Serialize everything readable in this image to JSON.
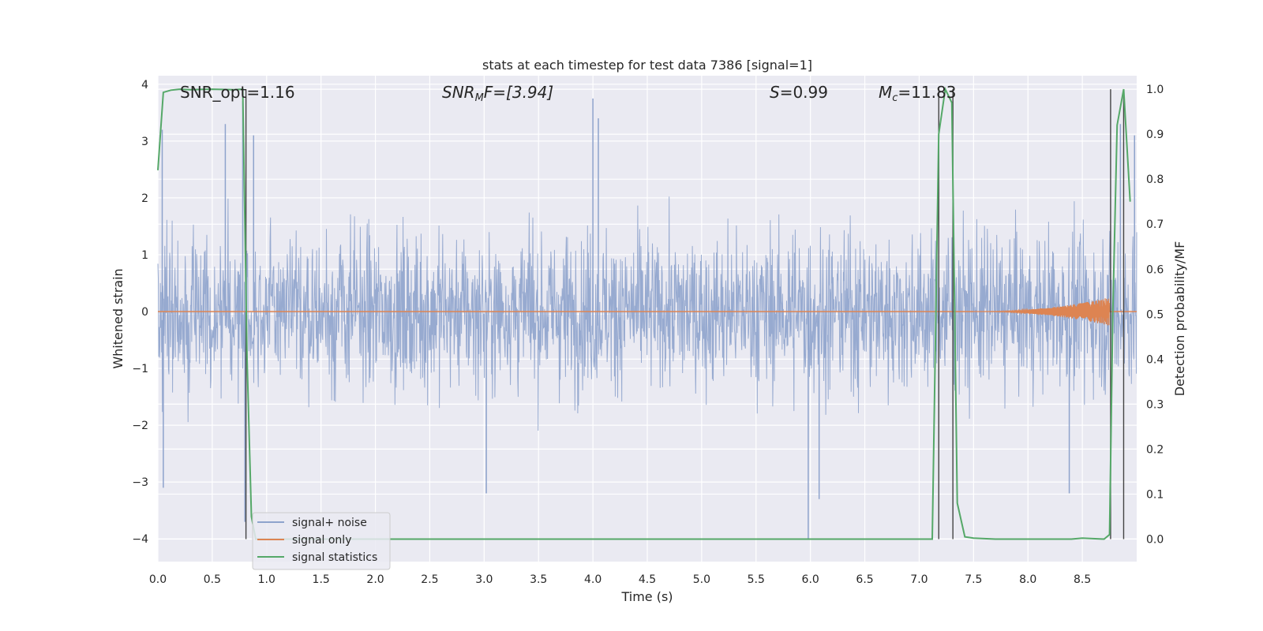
{
  "chart_data": {
    "type": "line",
    "title": "stats at each timestep for test data 7386 [signal=1]",
    "xlabel": "Time (s)",
    "ylabel_left": "Whitened strain",
    "ylabel_right": "Detection probability/MF",
    "xlim": [
      0.0,
      9.0
    ],
    "ylim_left": [
      -4.4,
      4.15
    ],
    "ylim_right": [
      -0.05,
      1.03
    ],
    "x_ticks": [
      "0.0",
      "0.5",
      "1.0",
      "1.5",
      "2.0",
      "2.5",
      "3.0",
      "3.5",
      "4.0",
      "4.5",
      "5.0",
      "5.5",
      "6.0",
      "6.5",
      "7.0",
      "7.5",
      "8.0",
      "8.5"
    ],
    "y_left_ticks": [
      "4",
      "3",
      "2",
      "1",
      "0",
      "−1",
      "−2",
      "−3",
      "−4"
    ],
    "y_right_ticks": [
      "1.0",
      "0.9",
      "0.8",
      "0.7",
      "0.6",
      "0.5",
      "0.4",
      "0.3",
      "0.2",
      "0.1",
      "0.0"
    ],
    "grid": true,
    "legend_position": "lower-left",
    "annotations": {
      "snr_opt": "SNR_opt=1.16",
      "snr_mf_base": "SNR",
      "snr_mf_sub": "M",
      "snr_mf_tail": "F=[3.94]",
      "s_italic": "S",
      "s_value": "=0.99",
      "mc_base": "M",
      "mc_sub": "c",
      "mc_value": "=11.83"
    },
    "series": [
      {
        "name": "signal+ noise",
        "color": "#8ea3cc",
        "description_values": "noise-like strain, amplitude mostly within ±2.5",
        "peak_values": [
          {
            "x": 0.04,
            "y": 3.2
          },
          {
            "x": 0.62,
            "y": 3.3
          },
          {
            "x": 0.78,
            "y": 3.7
          },
          {
            "x": 0.8,
            "y": -3.7
          },
          {
            "x": 0.88,
            "y": 3.1
          },
          {
            "x": 0.05,
            "y": -3.1
          },
          {
            "x": 3.02,
            "y": -3.2
          },
          {
            "x": 4.0,
            "y": 3.75
          },
          {
            "x": 4.05,
            "y": 3.4
          },
          {
            "x": 5.98,
            "y": -4.0
          },
          {
            "x": 6.08,
            "y": -3.3
          },
          {
            "x": 8.38,
            "y": -3.2
          },
          {
            "x": 8.85,
            "y": 3.3
          },
          {
            "x": 8.98,
            "y": 3.1
          }
        ]
      },
      {
        "name": "signal only",
        "color": "#dd8452",
        "chirp_start": 7.5,
        "chirp_end": 8.75,
        "chirp_max_amplitude": 0.25
      },
      {
        "name": "signal statistics",
        "color": "#55a868",
        "x": [
          0.0,
          0.05,
          0.12,
          0.2,
          0.3,
          0.5,
          0.7,
          0.78,
          0.82,
          0.86,
          0.9,
          1.0,
          2.0,
          3.0,
          4.0,
          5.0,
          6.0,
          7.0,
          7.12,
          7.18,
          7.24,
          7.3,
          7.35,
          7.42,
          7.5,
          7.7,
          8.0,
          8.4,
          8.5,
          8.7,
          8.75,
          8.78,
          8.82,
          8.88,
          8.94
        ],
        "y": [
          0.82,
          0.993,
          0.998,
          1.0,
          0.999,
          1.0,
          0.999,
          1.0,
          0.4,
          0.05,
          0.0,
          0.0,
          0.0,
          0.0,
          0.0,
          0.0,
          0.0,
          0.0,
          0.0,
          0.9,
          1.0,
          0.97,
          0.08,
          0.005,
          0.002,
          0.0,
          0.0,
          0.0,
          0.002,
          0.0,
          0.01,
          0.5,
          0.92,
          1.0,
          0.75
        ]
      }
    ],
    "vertical_lines_x": [
      0.81,
      7.18,
      7.31,
      8.76,
      8.88
    ]
  }
}
